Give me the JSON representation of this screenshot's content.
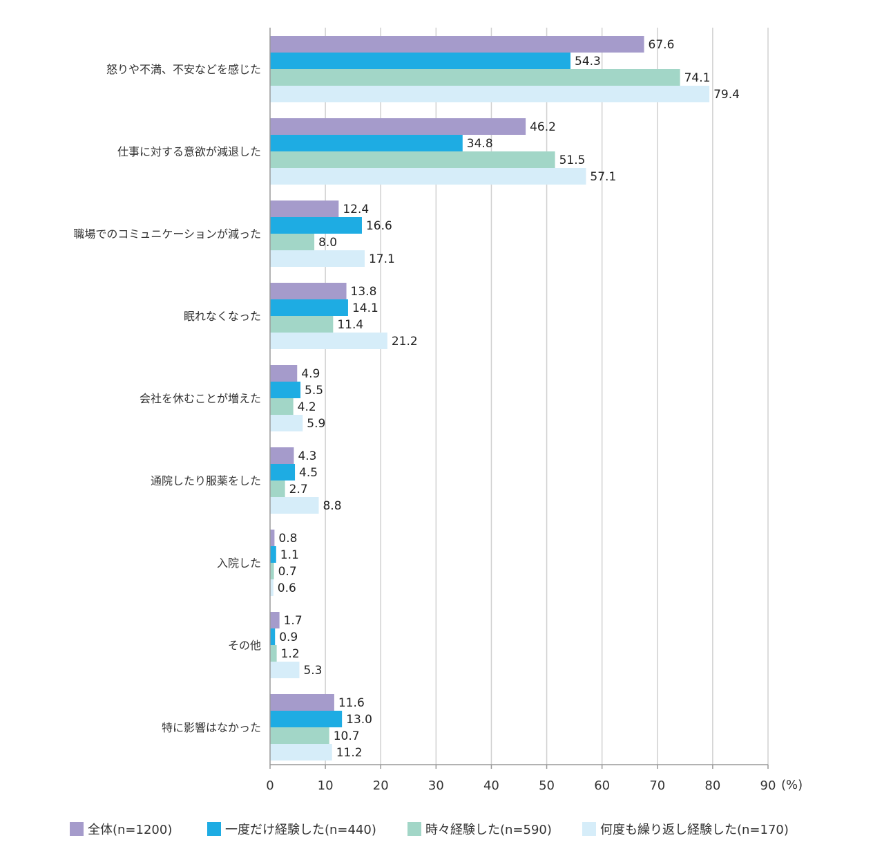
{
  "chart_data": {
    "type": "bar",
    "orientation": "horizontal",
    "categories": [
      "怒りや不満、不安などを感じた",
      "仕事に対する意欲が減退した",
      "職場でのコミュニケーションが減った",
      "眠れなくなった",
      "会社を休むことが増えた",
      "通院したり服薬をした",
      "入院した",
      "その他",
      "特に影響はなかった"
    ],
    "series": [
      {
        "name": "全体(n=1200)",
        "color": "#a59bcb",
        "values": [
          67.6,
          46.2,
          12.4,
          13.8,
          4.9,
          4.3,
          0.8,
          1.7,
          11.6
        ]
      },
      {
        "name": "一度だけ経験した(n=440)",
        "color": "#1eace3",
        "values": [
          54.3,
          34.8,
          16.6,
          14.1,
          5.5,
          4.5,
          1.1,
          0.9,
          13.0
        ]
      },
      {
        "name": "時々経験した(n=590)",
        "color": "#a2d6c7",
        "values": [
          74.1,
          51.5,
          8.0,
          11.4,
          4.2,
          2.7,
          0.7,
          1.2,
          10.7
        ]
      },
      {
        "name": "何度も繰り返し経験した(n=170)",
        "color": "#d6edf9",
        "values": [
          79.4,
          57.1,
          17.1,
          21.2,
          5.9,
          8.8,
          0.6,
          5.3,
          11.2
        ]
      }
    ],
    "xlim": [
      0,
      90
    ],
    "xticks": [
      0,
      10,
      20,
      30,
      40,
      50,
      60,
      70,
      80,
      90
    ],
    "xunit": "(%)",
    "grid": true,
    "legend_position": "bottom"
  }
}
